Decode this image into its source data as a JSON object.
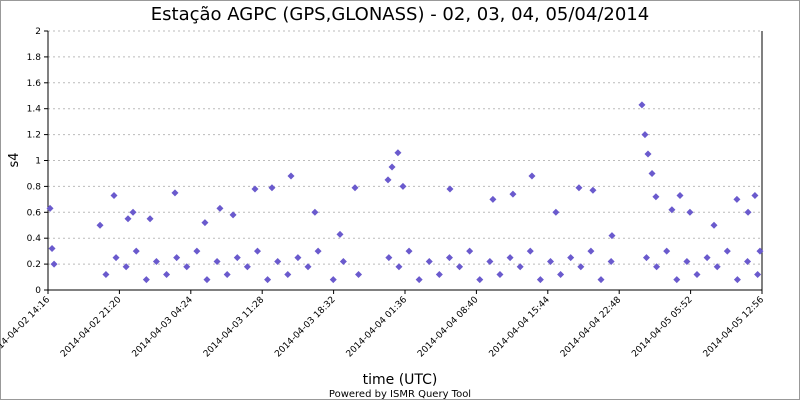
{
  "chart_data": {
    "type": "scatter",
    "title": "Estação AGPC (GPS,GLONASS) - 02, 03, 04, 05/04/2014",
    "x_label": "time (UTC)",
    "y_label": "s4",
    "footer": "Powered by ISMR Query Tool",
    "color": "#6a5acd",
    "grid": true,
    "xlim": [
      "2014-04-02 14:16",
      "2014-04-05 12:56"
    ],
    "xticks": [
      "2014-04-02 14:16",
      "2014-04-02 21:20",
      "2014-04-03 04:24",
      "2014-04-03 11:28",
      "2014-04-03 18:32",
      "2014-04-04 01:36",
      "2014-04-04 08:40",
      "2014-04-04 15:44",
      "2014-04-04 22:48",
      "2014-04-05 05:52",
      "2014-04-05 12:56"
    ],
    "ylim": [
      0,
      2
    ],
    "yticks": [
      0,
      0.2,
      0.4,
      0.6,
      0.8,
      1,
      1.2,
      1.4,
      1.6,
      1.8,
      2
    ],
    "x": [
      "2014-04-02 14:28",
      "2014-04-02 14:40",
      "2014-04-02 14:52",
      "2014-04-02 19:25",
      "2014-04-02 20:48",
      "2014-04-02 22:11",
      "2014-04-02 22:41",
      "2014-04-03 00:22",
      "2014-04-03 02:50",
      "2014-04-03 05:48",
      "2014-04-03 07:17",
      "2014-04-03 08:35",
      "2014-04-03 10:45",
      "2014-04-03 12:26",
      "2014-04-03 14:19",
      "2014-04-03 16:41",
      "2014-04-03 19:10",
      "2014-04-03 20:39",
      "2014-04-03 23:55",
      "2014-04-04 00:19",
      "2014-04-04 00:54",
      "2014-04-04 01:24",
      "2014-04-04 06:03",
      "2014-04-04 10:18",
      "2014-04-04 12:17",
      "2014-04-04 14:10",
      "2014-04-04 16:32",
      "2014-04-04 18:49",
      "2014-04-04 20:12",
      "2014-04-04 22:05",
      "2014-04-05 01:03",
      "2014-04-05 01:21",
      "2014-04-05 01:39",
      "2014-04-05 02:03",
      "2014-04-05 02:26",
      "2014-04-05 04:01",
      "2014-04-05 04:49",
      "2014-04-05 05:48",
      "2014-04-05 08:11",
      "2014-04-05 10:27",
      "2014-04-05 11:33",
      "2014-04-05 12:14",
      "2014-04-05 12:44",
      "2014-04-02 20:00",
      "2014-04-02 21:00",
      "2014-04-02 22:00",
      "2014-04-02 23:00",
      "2014-04-03 00:00",
      "2014-04-03 01:00",
      "2014-04-03 02:00",
      "2014-04-03 03:00",
      "2014-04-03 04:00",
      "2014-04-03 05:00",
      "2014-04-03 06:00",
      "2014-04-03 07:00",
      "2014-04-03 08:00",
      "2014-04-03 09:00",
      "2014-04-03 10:00",
      "2014-04-03 11:00",
      "2014-04-03 12:00",
      "2014-04-03 13:00",
      "2014-04-03 14:00",
      "2014-04-03 15:00",
      "2014-04-03 16:00",
      "2014-04-03 17:00",
      "2014-04-03 18:30",
      "2014-04-03 19:30",
      "2014-04-03 21:00",
      "2014-04-04 00:00",
      "2014-04-04 01:00",
      "2014-04-04 02:00",
      "2014-04-04 03:00",
      "2014-04-04 04:00",
      "2014-04-04 05:00",
      "2014-04-04 06:00",
      "2014-04-04 07:00",
      "2014-04-04 08:00",
      "2014-04-04 09:00",
      "2014-04-04 10:00",
      "2014-04-04 11:00",
      "2014-04-04 12:00",
      "2014-04-04 13:00",
      "2014-04-04 14:00",
      "2014-04-04 15:00",
      "2014-04-04 16:00",
      "2014-04-04 17:00",
      "2014-04-04 18:00",
      "2014-04-04 19:00",
      "2014-04-04 20:00",
      "2014-04-04 21:00",
      "2014-04-04 22:00",
      "2014-04-05 01:30",
      "2014-04-05 02:30",
      "2014-04-05 03:30",
      "2014-04-05 04:30",
      "2014-04-05 05:30",
      "2014-04-05 06:30",
      "2014-04-05 07:30",
      "2014-04-05 08:30",
      "2014-04-05 09:30",
      "2014-04-05 10:30",
      "2014-04-05 11:30",
      "2014-04-05 12:30"
    ],
    "values": [
      0.63,
      0.32,
      0.2,
      0.5,
      0.73,
      0.55,
      0.6,
      0.55,
      0.75,
      0.52,
      0.63,
      0.58,
      0.78,
      0.79,
      0.88,
      0.6,
      0.43,
      0.79,
      0.85,
      0.95,
      1.06,
      0.8,
      0.78,
      0.7,
      0.74,
      0.88,
      0.6,
      0.79,
      0.77,
      0.42,
      1.43,
      1.2,
      1.05,
      0.9,
      0.72,
      0.62,
      0.73,
      0.6,
      0.5,
      0.7,
      0.6,
      0.73,
      0.3,
      0.12,
      0.25,
      0.18,
      0.3,
      0.08,
      0.22,
      0.12,
      0.25,
      0.18,
      0.3,
      0.08,
      0.22,
      0.12,
      0.25,
      0.18,
      0.3,
      0.08,
      0.22,
      0.12,
      0.25,
      0.18,
      0.3,
      0.08,
      0.22,
      0.12,
      0.25,
      0.18,
      0.3,
      0.08,
      0.22,
      0.12,
      0.25,
      0.18,
      0.3,
      0.08,
      0.22,
      0.12,
      0.25,
      0.18,
      0.3,
      0.08,
      0.22,
      0.12,
      0.25,
      0.18,
      0.3,
      0.08,
      0.22,
      0.25,
      0.18,
      0.3,
      0.08,
      0.22,
      0.12,
      0.25,
      0.18,
      0.3,
      0.08,
      0.22,
      0.12
    ]
  }
}
